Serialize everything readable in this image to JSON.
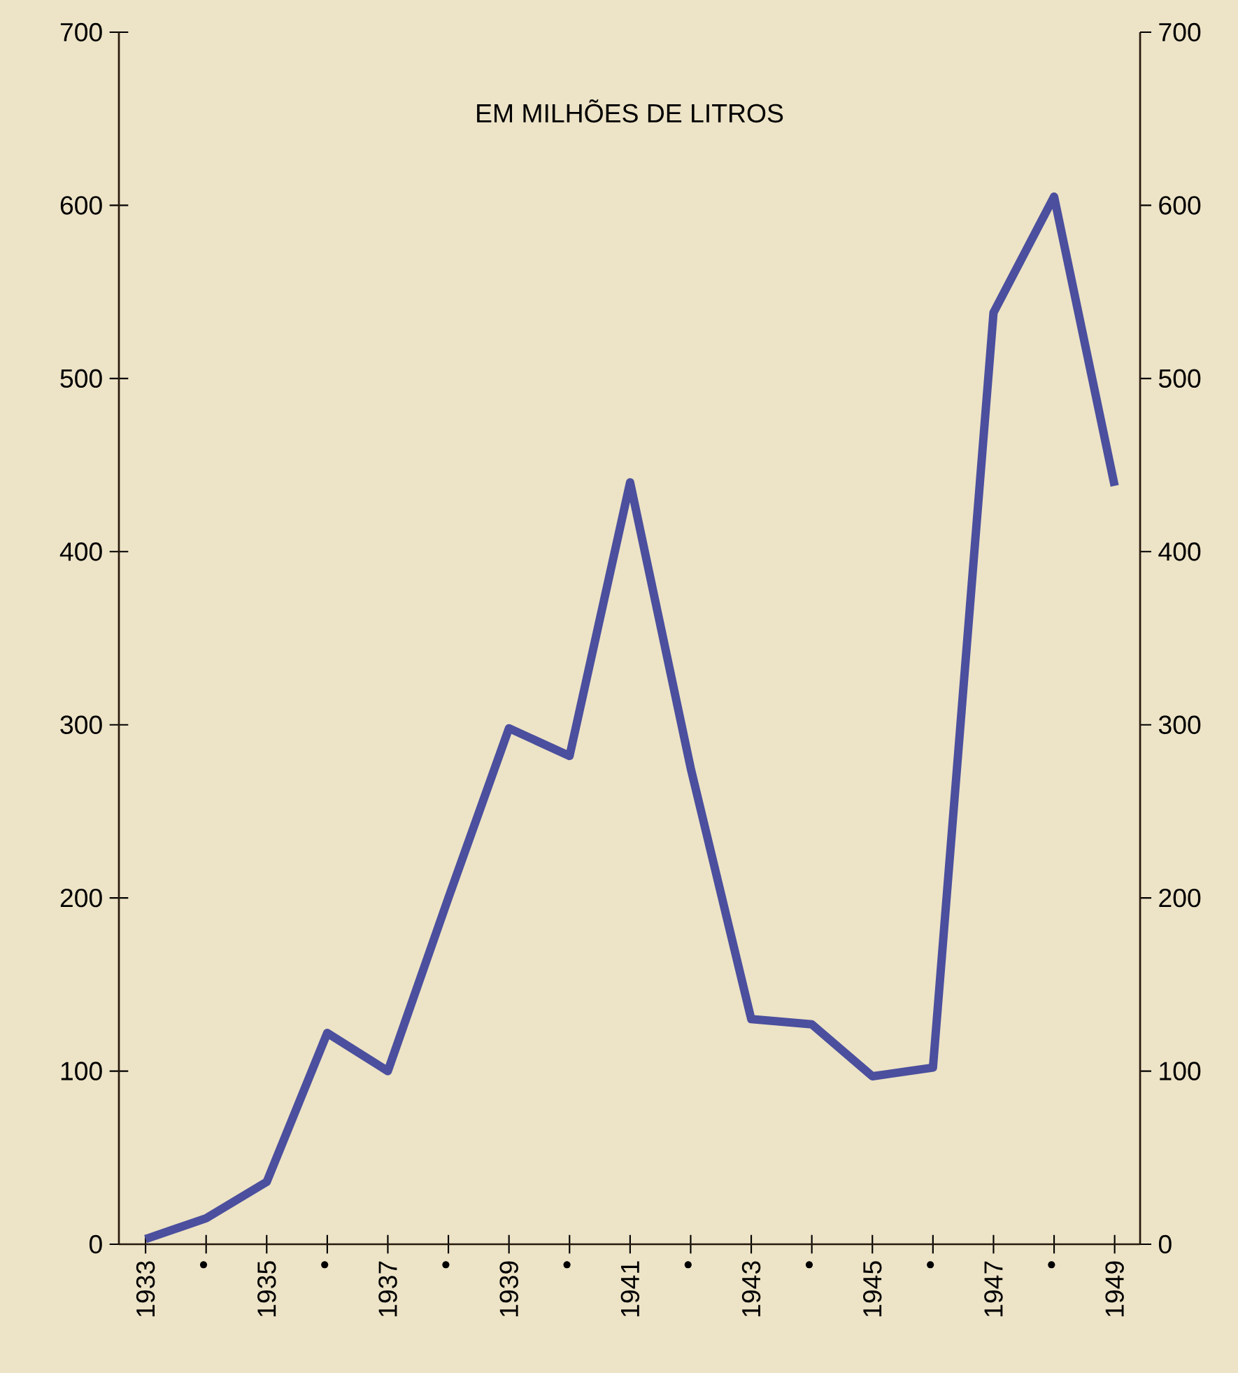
{
  "chart_data": {
    "type": "line",
    "title": "EM MILHÕES DE LITROS",
    "categories": [
      "1933",
      "•",
      "1935",
      "•",
      "1937",
      "•",
      "1939",
      "•",
      "1941",
      "•",
      "1943",
      "•",
      "1945",
      "•",
      "1947",
      "•",
      "1949"
    ],
    "series": [
      {
        "color": "#4b4f9e",
        "values": [
          3,
          15,
          36,
          122,
          100,
          200,
          298,
          282,
          440,
          275,
          130,
          127,
          97,
          102,
          538,
          605,
          438
        ]
      }
    ],
    "ylim": [
      0,
      700
    ],
    "yticks": [
      0,
      100,
      200,
      300,
      400,
      500,
      600,
      700
    ],
    "y2lim": [
      0,
      700
    ],
    "y2ticks": [
      0,
      100,
      200,
      300,
      400,
      500,
      600,
      700
    ],
    "grid": false,
    "marker": "none",
    "line_style": "solid"
  }
}
